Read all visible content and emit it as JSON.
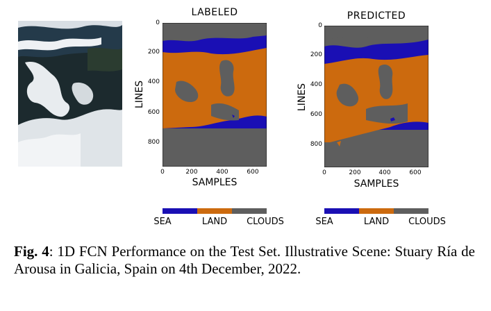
{
  "figure": {
    "panels": [
      {
        "title": "LABELED",
        "xlabel": "SAMPLES",
        "ylabel": "LINES",
        "xticks": [
          "0",
          "200",
          "400",
          "600"
        ],
        "yticks": [
          "0",
          "200",
          "400",
          "600",
          "800"
        ]
      },
      {
        "title": "PREDICTED",
        "xlabel": "SAMPLES",
        "ylabel": "LINES",
        "xticks": [
          "0",
          "200",
          "400",
          "600"
        ],
        "yticks": [
          "0",
          "200",
          "400",
          "600",
          "800"
        ]
      }
    ],
    "legend": {
      "classes": [
        {
          "label": "SEA",
          "color": "#1a0fb4"
        },
        {
          "label": "LAND",
          "color": "#cc6a0e"
        },
        {
          "label": "CLOUDS",
          "color": "#5e5e5e"
        }
      ]
    }
  },
  "caption": {
    "label": "Fig. 4",
    "text": ": 1D FCN Performance on the Test Set. Illustrative Scene: Stuary Ría de Arousa in Galicia, Spain on 4th December, 2022."
  }
}
